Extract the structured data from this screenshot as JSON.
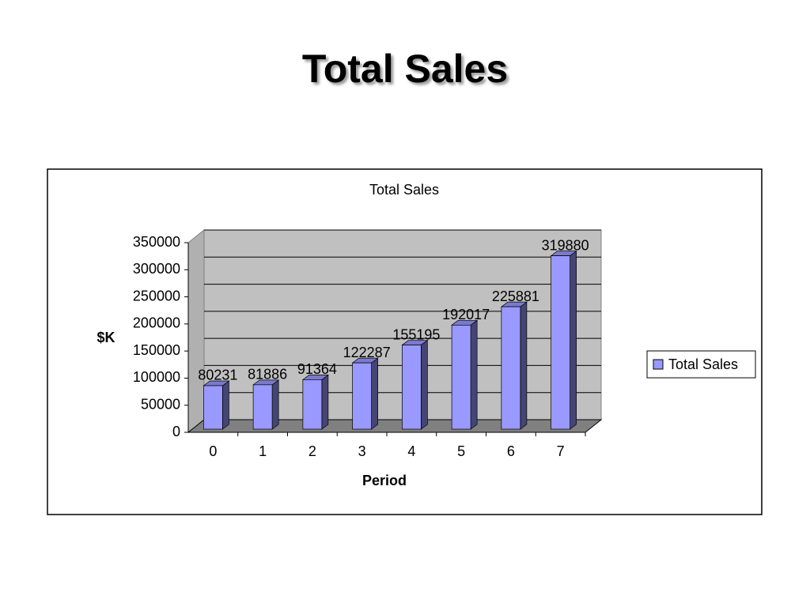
{
  "title": "Total Sales",
  "chart_data": {
    "type": "bar3d",
    "title": "Total Sales",
    "x_label": "Period",
    "y_label": "$K",
    "categories": [
      "0",
      "1",
      "2",
      "3",
      "4",
      "5",
      "6",
      "7"
    ],
    "series": [
      {
        "name": "Total Sales",
        "color": "#9999ff",
        "values": [
          80231,
          81886,
          91364,
          122287,
          155195,
          192017,
          225881,
          319880
        ]
      }
    ],
    "ylim": [
      0,
      350000
    ],
    "yticks": [
      0,
      50000,
      100000,
      150000,
      200000,
      250000,
      300000,
      350000
    ],
    "grid": true,
    "legend": "right"
  }
}
